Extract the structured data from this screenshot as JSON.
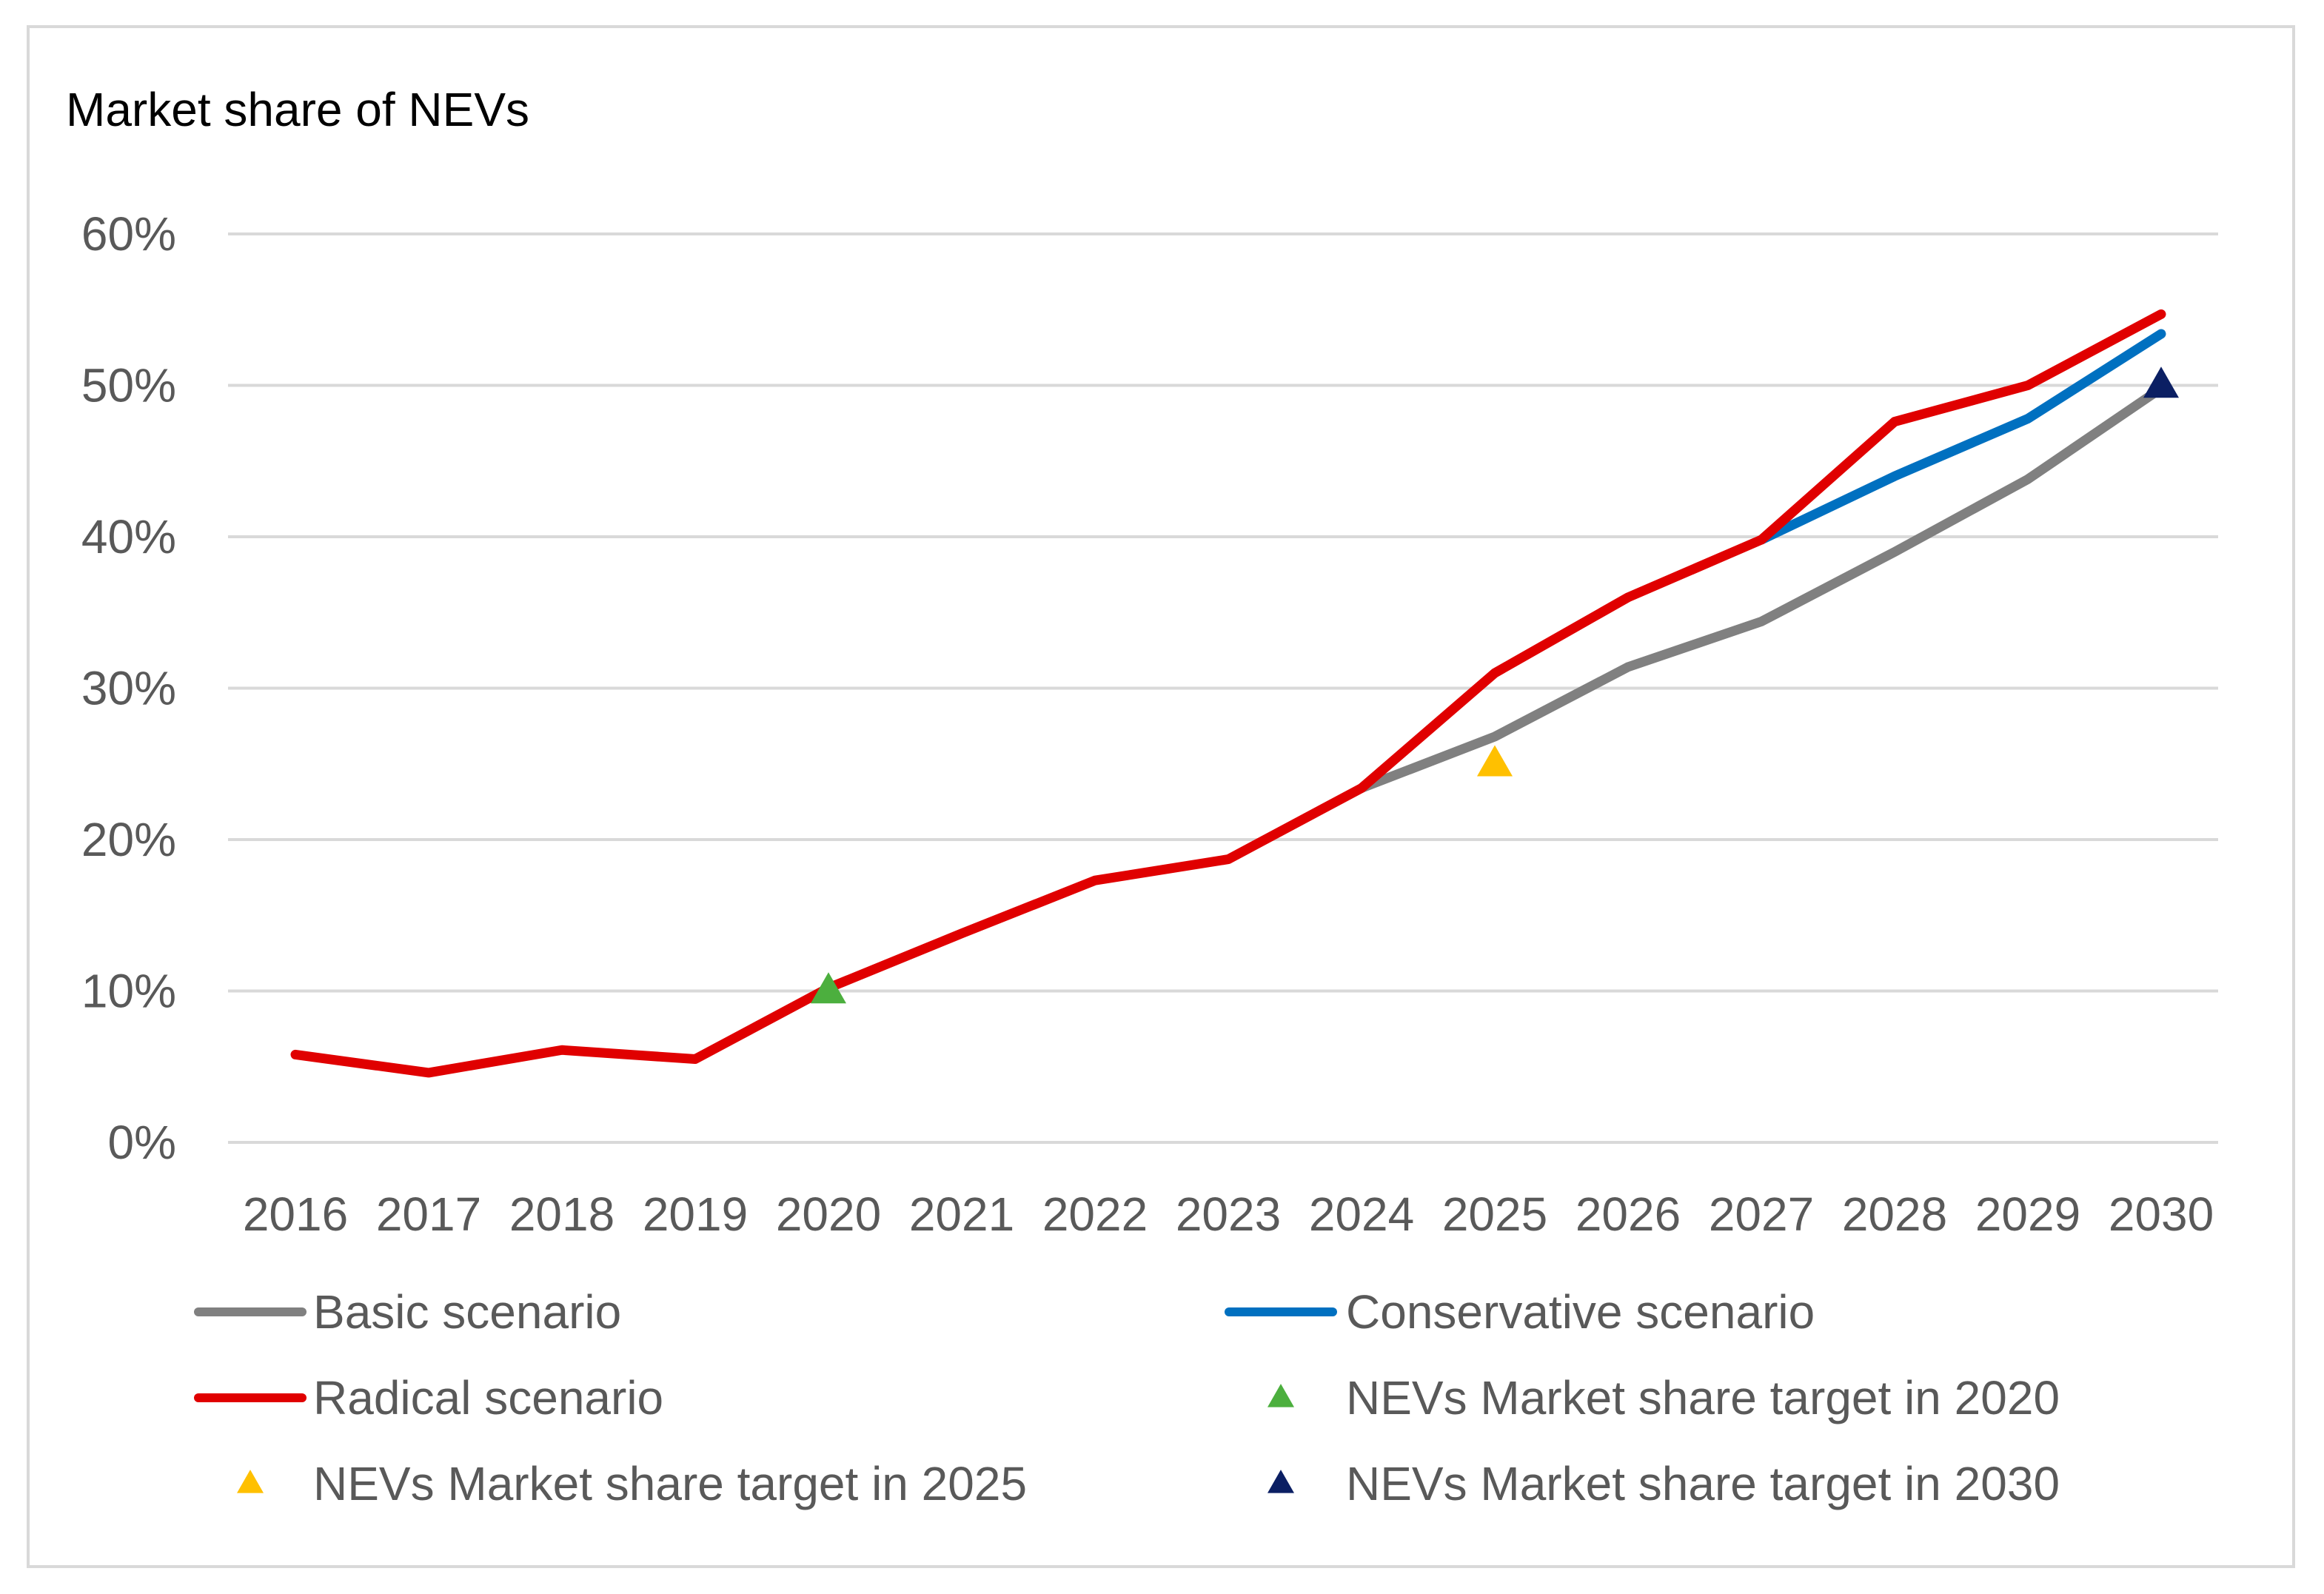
{
  "chart_data": {
    "type": "line",
    "title": "Market share of NEVs",
    "xlabel": "",
    "ylabel": "",
    "categories": [
      "2016",
      "2017",
      "2018",
      "2019",
      "2020",
      "2021",
      "2022",
      "2023",
      "2024",
      "2025",
      "2026",
      "2027",
      "2028",
      "2029",
      "2030"
    ],
    "ylim": [
      0,
      60
    ],
    "yticks": [
      0,
      10,
      20,
      30,
      40,
      50,
      60
    ],
    "ytick_labels": [
      "0%",
      "10%",
      "20%",
      "30%",
      "40%",
      "50%",
      "60%"
    ],
    "grid": true,
    "series": [
      {
        "name": "Basic scenario",
        "color": "#808080",
        "values": [
          null,
          null,
          null,
          null,
          null,
          null,
          null,
          null,
          23.4,
          26.8,
          31.4,
          34.4,
          39.0,
          43.8,
          49.8
        ]
      },
      {
        "name": "Conservative scenario",
        "color": "#0070c0",
        "values": [
          null,
          null,
          null,
          null,
          null,
          null,
          null,
          null,
          null,
          null,
          null,
          39.8,
          44.0,
          47.8,
          53.4
        ]
      },
      {
        "name": "Radical scenario",
        "color": "#e00000",
        "values": [
          5.8,
          4.6,
          6.1,
          5.5,
          10.2,
          13.8,
          17.3,
          18.7,
          23.4,
          31.0,
          36.0,
          39.8,
          47.6,
          50.0,
          54.7
        ]
      }
    ],
    "markers": [
      {
        "name": "NEVs Market share target in 2020",
        "x": "2020",
        "value": 10,
        "color": "#4caf3e"
      },
      {
        "name": "NEVs Market share target in 2025",
        "x": "2025",
        "value": 25,
        "color": "#ffc000"
      },
      {
        "name": "NEVs Market share target in 2030",
        "x": "2030",
        "value": 50,
        "color": "#0b1f63"
      }
    ],
    "legend": [
      {
        "label": "Basic scenario",
        "kind": "line",
        "color": "#808080"
      },
      {
        "label": "Conservative scenario",
        "kind": "line",
        "color": "#0070c0"
      },
      {
        "label": "Radical scenario",
        "kind": "line",
        "color": "#e00000"
      },
      {
        "label": "NEVs Market share target in 2020",
        "kind": "triangle",
        "color": "#4caf3e"
      },
      {
        "label": "NEVs Market share target in 2025",
        "kind": "triangle",
        "color": "#ffc000"
      },
      {
        "label": "NEVs Market share target in 2030",
        "kind": "triangle",
        "color": "#0b1f63"
      }
    ],
    "legend_position": "bottom"
  }
}
